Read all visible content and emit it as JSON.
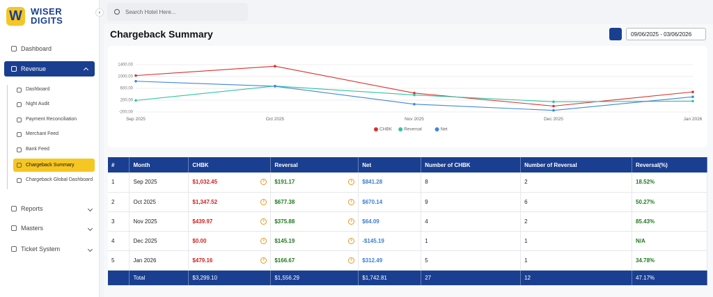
{
  "brand": {
    "logo": "W",
    "line1": "WISER",
    "line2": "DIGITS"
  },
  "search_placeholder": "Search Hotel Here...",
  "nav": {
    "dashboard": "Dashboard",
    "revenue": "Revenue",
    "revenue_items": [
      "Dashboard",
      "Night Audit",
      "Payment Reconciliation",
      "Merchant Feed",
      "Bank Feed",
      "Chargeback Summary",
      "Chargeback Global Dashboard"
    ],
    "reports": "Reports",
    "masters": "Masters",
    "ticket_system": "Ticket System"
  },
  "page_title": "Chargeback Summary",
  "date_range": "09/06/2025 - 03/06/2026",
  "chart_data": {
    "type": "line",
    "categories": [
      "Sep 2025",
      "Oct 2025",
      "Nov 2025",
      "Dec 2025",
      "Jan 2026"
    ],
    "series": [
      {
        "name": "CHBK",
        "color": "#d9302c",
        "values": [
          1032.45,
          1347.52,
          439.97,
          0,
          479.16
        ]
      },
      {
        "name": "Reversal",
        "color": "#2ec4a0",
        "values": [
          191.17,
          677.38,
          375.88,
          145.19,
          166.67
        ]
      },
      {
        "name": "Net",
        "color": "#3f86d9",
        "values": [
          841.28,
          670.14,
          64.09,
          -145.19,
          312.49
        ]
      }
    ],
    "ylim": [
      -200,
      1400
    ],
    "yticks": [
      {
        "value": -200,
        "label": "-200.00"
      },
      {
        "value": 200,
        "label": "200.00"
      },
      {
        "value": 600,
        "label": "600.00"
      },
      {
        "value": 1000,
        "label": "1000.00"
      },
      {
        "value": 1400,
        "label": "1400.00"
      }
    ],
    "grid": true
  },
  "table": {
    "headers": [
      "#",
      "Month",
      "CHBK",
      "Reversal",
      "Net",
      "Number of CHBK",
      "Number of Reversal",
      "Reversal(%)"
    ],
    "rows": [
      [
        "1",
        "Sep 2025",
        "$1,032.45",
        "$191.17",
        "$841.28",
        "8",
        "2",
        "18.52%"
      ],
      [
        "2",
        "Oct 2025",
        "$1,347.52",
        "$677.38",
        "$670.14",
        "9",
        "6",
        "50.27%"
      ],
      [
        "3",
        "Nov 2025",
        "$439.97",
        "$375.88",
        "$64.09",
        "4",
        "2",
        "85.43%"
      ],
      [
        "4",
        "Dec 2025",
        "$0.00",
        "$145.19",
        "-$145.19",
        "1",
        "1",
        "N/A"
      ],
      [
        "5",
        "Jan 2026",
        "$479.16",
        "$166.67",
        "$312.49",
        "5",
        "1",
        "34.78%"
      ]
    ],
    "total": {
      "label": "Total",
      "values": [
        "$3,299.10",
        "$1,556.29",
        "$1,742.81",
        "27",
        "12",
        "47.17%"
      ]
    }
  }
}
